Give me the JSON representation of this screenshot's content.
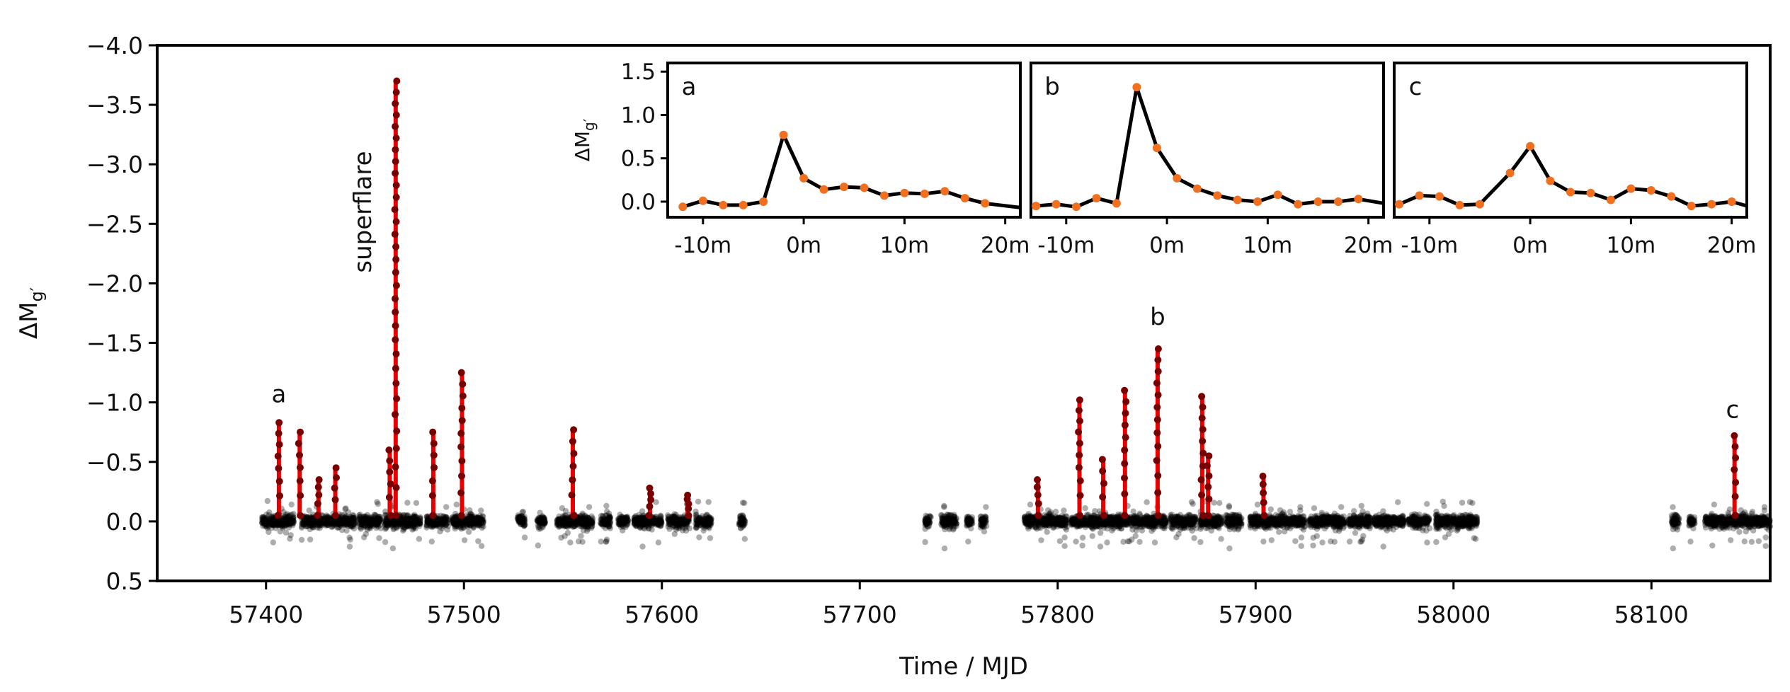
{
  "colors": {
    "axis": "#000000",
    "background_points": "#000000",
    "flare": "#e60000",
    "flare_points": "#7a0000",
    "inset_points": "#f07020",
    "inset_line": "#000000"
  },
  "chart_data": [
    {
      "type": "scatter",
      "title": "",
      "xlabel": "Time / MJD",
      "ylabel": "ΔMg′",
      "ylabel_main": "ΔM",
      "ylabel_sub": "g′",
      "xlim": [
        57345,
        58160
      ],
      "ylim": [
        0.5,
        -4.0
      ],
      "y_inverted": true,
      "xticks": [
        57400,
        57500,
        57600,
        57700,
        57800,
        57900,
        58000,
        58100
      ],
      "xtick_labels": [
        "57400",
        "57500",
        "57600",
        "57700",
        "57800",
        "57900",
        "58000",
        "58100"
      ],
      "yticks": [
        -4.0,
        -3.5,
        -3.0,
        -2.5,
        -2.0,
        -1.5,
        -1.0,
        -0.5,
        0.0,
        0.5
      ],
      "ytick_labels": [
        "−4.0",
        "−3.5",
        "−3.0",
        "−2.5",
        "−2.0",
        "−1.5",
        "−1.0",
        "−0.5",
        "0.0",
        "0.5"
      ],
      "observation_segments": [
        [
          57398,
          57414
        ],
        [
          57418,
          57445
        ],
        [
          57447,
          57458
        ],
        [
          57460,
          57478
        ],
        [
          57481,
          57492
        ],
        [
          57494,
          57510
        ],
        [
          57527,
          57531
        ],
        [
          57537,
          57541
        ],
        [
          57547,
          57565
        ],
        [
          57569,
          57574
        ],
        [
          57578,
          57583
        ],
        [
          57586,
          57600
        ],
        [
          57603,
          57614
        ],
        [
          57617,
          57625
        ],
        [
          57639,
          57642
        ],
        [
          57733,
          57736
        ],
        [
          57741,
          57749
        ],
        [
          57754,
          57757
        ],
        [
          57761,
          57764
        ],
        [
          57783,
          57805
        ],
        [
          57807,
          57855
        ],
        [
          57857,
          57870
        ],
        [
          57872,
          57883
        ],
        [
          57885,
          57893
        ],
        [
          57897,
          57925
        ],
        [
          57927,
          57945
        ],
        [
          57947,
          57958
        ],
        [
          57960,
          57975
        ],
        [
          57977,
          57988
        ],
        [
          57991,
          58012
        ],
        [
          58110,
          58114
        ],
        [
          58119,
          58122
        ],
        [
          58127,
          58160
        ]
      ],
      "flares": [
        {
          "mjd": 57406.5,
          "peak": -0.83
        },
        {
          "mjd": 57417.0,
          "peak": -0.75
        },
        {
          "mjd": 57426.5,
          "peak": -0.35
        },
        {
          "mjd": 57435.0,
          "peak": -0.45
        },
        {
          "mjd": 57462.5,
          "peak": -0.6
        },
        {
          "mjd": 57465.5,
          "peak": -3.7
        },
        {
          "mjd": 57484.5,
          "peak": -0.75
        },
        {
          "mjd": 57499.0,
          "peak": -1.25
        },
        {
          "mjd": 57555.0,
          "peak": -0.77
        },
        {
          "mjd": 57594.0,
          "peak": -0.28
        },
        {
          "mjd": 57613.0,
          "peak": -0.22
        },
        {
          "mjd": 57790.0,
          "peak": -0.35
        },
        {
          "mjd": 57811.0,
          "peak": -1.02
        },
        {
          "mjd": 57823.0,
          "peak": -0.52
        },
        {
          "mjd": 57834.0,
          "peak": -1.1
        },
        {
          "mjd": 57850.5,
          "peak": -1.45
        },
        {
          "mjd": 57873.0,
          "peak": -1.05
        },
        {
          "mjd": 57876.0,
          "peak": -0.55
        },
        {
          "mjd": 57904.0,
          "peak": -0.38
        },
        {
          "mjd": 58142.0,
          "peak": -0.72
        }
      ],
      "annotations": [
        {
          "text": "a",
          "x": 57406.5,
          "y": -1.0
        },
        {
          "text": "b",
          "x": 57850.5,
          "y": -1.65
        },
        {
          "text": "c",
          "x": 58141.0,
          "y": -0.87
        },
        {
          "text": "superflare",
          "x": 57453,
          "y": -2.6,
          "rotation": -90
        }
      ]
    },
    {
      "type": "line",
      "panel_label": "a",
      "ylabel": "ΔMg′",
      "xlim": [
        -13.5,
        21.5
      ],
      "ylim": [
        -0.18,
        1.6
      ],
      "xticks": [
        -10,
        0,
        10,
        20
      ],
      "xtick_labels": [
        "-10m",
        "0m",
        "10m",
        "20m"
      ],
      "yticks": [
        0.0,
        0.5,
        1.0,
        1.5
      ],
      "ytick_labels": [
        "0.0",
        "0.5",
        "1.0",
        "1.5"
      ],
      "x": [
        -12,
        -10,
        -8,
        -6,
        -4,
        -2,
        0,
        2,
        4,
        6,
        8,
        10,
        12,
        14,
        16,
        18,
        20
      ],
      "y": [
        -0.06,
        0.01,
        -0.04,
        -0.04,
        0.0,
        0.77,
        0.27,
        0.14,
        0.17,
        0.16,
        0.07,
        0.1,
        0.09,
        0.12,
        0.04,
        -0.02,
        null
      ]
    },
    {
      "type": "line",
      "panel_label": "b",
      "xlim": [
        -13.5,
        21.5
      ],
      "ylim": [
        -0.18,
        1.6
      ],
      "xticks": [
        -10,
        0,
        10,
        20
      ],
      "xtick_labels": [
        "-10m",
        "0m",
        "10m",
        "20m"
      ],
      "x": [
        -13,
        -11,
        -9,
        -7,
        -5,
        -3,
        -1,
        1,
        3,
        5,
        7,
        9,
        11,
        13,
        15,
        17,
        19,
        21
      ],
      "y": [
        -0.05,
        -0.03,
        -0.06,
        0.04,
        -0.02,
        1.32,
        0.62,
        0.27,
        0.15,
        0.07,
        0.02,
        0.0,
        0.08,
        -0.03,
        0.0,
        0.0,
        0.03,
        null
      ]
    },
    {
      "type": "line",
      "panel_label": "c",
      "xlim": [
        -13.5,
        21.5
      ],
      "ylim": [
        -0.18,
        1.6
      ],
      "xticks": [
        -10,
        0,
        10,
        20
      ],
      "xtick_labels": [
        "-10m",
        "0m",
        "10m",
        "20m"
      ],
      "x": [
        -13,
        -11,
        -9,
        -7,
        -5,
        -2,
        0,
        2,
        4,
        6,
        8,
        10,
        12,
        14,
        16,
        18,
        20
      ],
      "y": [
        -0.03,
        0.07,
        0.06,
        -0.04,
        -0.03,
        0.33,
        0.64,
        0.24,
        0.11,
        0.1,
        0.02,
        0.15,
        0.13,
        0.06,
        -0.05,
        -0.03,
        0.0
      ]
    }
  ]
}
